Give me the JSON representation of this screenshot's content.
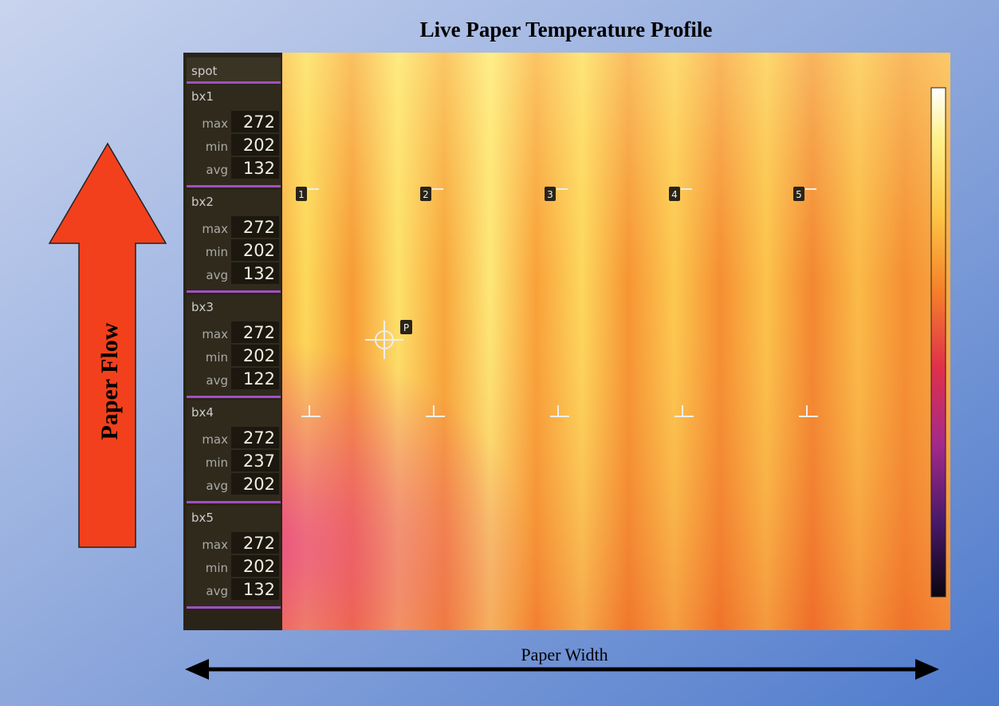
{
  "title": "Live Paper Temperature Profile",
  "flow_label": "Paper Flow",
  "width_label": "Paper Width",
  "panel": {
    "spot": "spot",
    "boxes": [
      {
        "name": "bx1",
        "rows": [
          {
            "label": "max",
            "value": 272
          },
          {
            "label": "min",
            "value": 202
          },
          {
            "label": "avg",
            "value": 132
          }
        ]
      },
      {
        "name": "bx2",
        "rows": [
          {
            "label": "max",
            "value": 272
          },
          {
            "label": "min",
            "value": 202
          },
          {
            "label": "avg",
            "value": 132
          }
        ]
      },
      {
        "name": "bx3",
        "rows": [
          {
            "label": "max",
            "value": 272
          },
          {
            "label": "min",
            "value": 202
          },
          {
            "label": "avg",
            "value": 122
          }
        ]
      },
      {
        "name": "bx4",
        "rows": [
          {
            "label": "max",
            "value": 272
          },
          {
            "label": "min",
            "value": 237
          },
          {
            "label": "avg",
            "value": 202
          }
        ]
      },
      {
        "name": "bx5",
        "rows": [
          {
            "label": "max",
            "value": 272
          },
          {
            "label": "min",
            "value": 202
          },
          {
            "label": "avg",
            "value": 132
          }
        ]
      }
    ]
  },
  "markers": [
    "1",
    "2",
    "3",
    "4",
    "5"
  ],
  "spot_marker": "P"
}
